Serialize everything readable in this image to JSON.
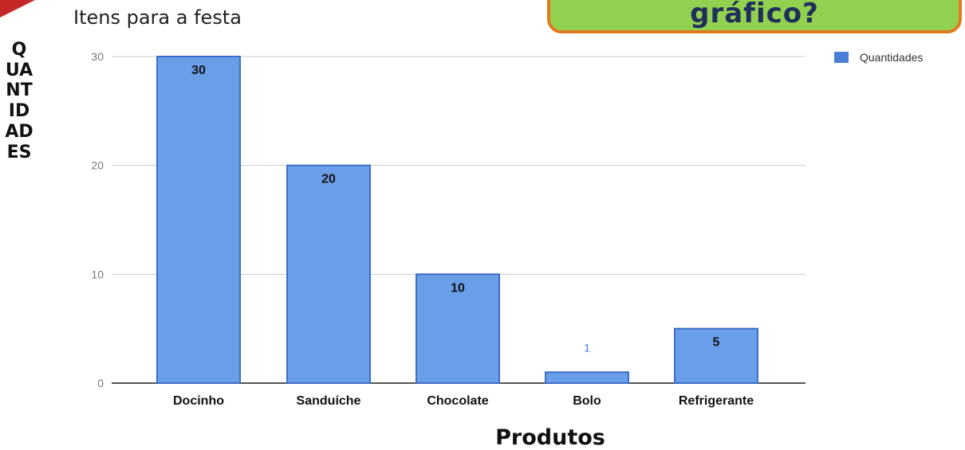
{
  "callout": {
    "text": "gráfico?"
  },
  "chart_data": {
    "type": "bar",
    "title": "Itens para a festa",
    "xlabel": "Produtos",
    "ylabel": "QUANTIDADES",
    "categories": [
      "Docinho",
      "Sanduíche",
      "Chocolate",
      "Bolo",
      "Refrigerante"
    ],
    "series": [
      {
        "name": "Quantidades",
        "values": [
          30,
          20,
          10,
          1,
          5
        ]
      }
    ],
    "data_labels": [
      "30",
      "20",
      "10",
      "1",
      "5"
    ],
    "y_ticks": [
      0,
      10,
      20,
      30
    ],
    "ylim": [
      0,
      30
    ],
    "grid": true,
    "legend_position": "right",
    "colors": {
      "bar": "#6a9ee8",
      "bar_border": "#3d6fc4",
      "grid": "#cccccc",
      "axis": "#555555"
    }
  }
}
